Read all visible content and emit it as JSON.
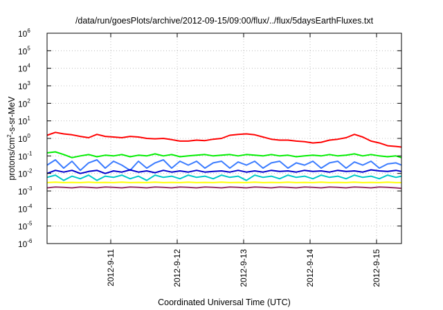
{
  "chart_data": {
    "type": "line",
    "title": "/data/run/goesPlots/archive/2012-09-15/09:00/flux/../flux/5daysEarthFluxes.txt",
    "xlabel": "Coordinated Universal Time (UTC)",
    "ylabel": {
      "prefix": "protons/cm",
      "sup": "2",
      "suffix": "-s-sr-MeV"
    },
    "y_scale": "log",
    "ylim": [
      1e-06,
      1000000.0
    ],
    "y_ticks": [
      {
        "value": 1e-06,
        "base": "10",
        "exp": "-6"
      },
      {
        "value": 1e-05,
        "base": "10",
        "exp": "-5"
      },
      {
        "value": 0.0001,
        "base": "10",
        "exp": "-4"
      },
      {
        "value": 0.001,
        "base": "10",
        "exp": "-3"
      },
      {
        "value": 0.01,
        "base": "10",
        "exp": "-2"
      },
      {
        "value": 0.1,
        "base": "10",
        "exp": "-1"
      },
      {
        "value": 1.0,
        "base": "10",
        "exp": "0"
      },
      {
        "value": 10.0,
        "base": "10",
        "exp": "1"
      },
      {
        "value": 100.0,
        "base": "10",
        "exp": "2"
      },
      {
        "value": 1000.0,
        "base": "10",
        "exp": "3"
      },
      {
        "value": 10000.0,
        "base": "10",
        "exp": "4"
      },
      {
        "value": 100000.0,
        "base": "10",
        "exp": "5"
      },
      {
        "value": 1000000.0,
        "base": "10",
        "exp": "6"
      }
    ],
    "xlim": [
      "2012-09-10 01:00",
      "2012-09-15 09:00"
    ],
    "x_ticks": [
      {
        "value": "2012-09-11 00:00",
        "label": "2012-9-11"
      },
      {
        "value": "2012-09-12 00:00",
        "label": "2012-9-12"
      },
      {
        "value": "2012-09-13 00:00",
        "label": "2012-9-13"
      },
      {
        "value": "2012-09-14 00:00",
        "label": "2012-9-14"
      },
      {
        "value": "2012-09-15 00:00",
        "label": "2012-9-15"
      }
    ],
    "grid": true,
    "x": [
      "2012-09-10 01:00",
      "2012-09-10 04:00",
      "2012-09-10 07:00",
      "2012-09-10 10:00",
      "2012-09-10 13:00",
      "2012-09-10 16:00",
      "2012-09-10 19:00",
      "2012-09-10 22:00",
      "2012-09-11 01:00",
      "2012-09-11 04:00",
      "2012-09-11 07:00",
      "2012-09-11 10:00",
      "2012-09-11 13:00",
      "2012-09-11 16:00",
      "2012-09-11 19:00",
      "2012-09-11 22:00",
      "2012-09-12 01:00",
      "2012-09-12 04:00",
      "2012-09-12 07:00",
      "2012-09-12 10:00",
      "2012-09-12 13:00",
      "2012-09-12 16:00",
      "2012-09-12 19:00",
      "2012-09-12 22:00",
      "2012-09-13 01:00",
      "2012-09-13 04:00",
      "2012-09-13 07:00",
      "2012-09-13 10:00",
      "2012-09-13 13:00",
      "2012-09-13 16:00",
      "2012-09-13 19:00",
      "2012-09-13 22:00",
      "2012-09-14 01:00",
      "2012-09-14 04:00",
      "2012-09-14 07:00",
      "2012-09-14 10:00",
      "2012-09-14 13:00",
      "2012-09-14 16:00",
      "2012-09-14 19:00",
      "2012-09-14 22:00",
      "2012-09-15 01:00",
      "2012-09-15 04:00",
      "2012-09-15 07:00",
      "2012-09-15 09:00"
    ],
    "series": [
      {
        "color": "#ff0000",
        "values": [
          1.5,
          2.2,
          1.8,
          1.6,
          1.3,
          1.1,
          1.7,
          1.3,
          1.2,
          1.1,
          1.3,
          1.2,
          1.0,
          0.95,
          1.0,
          0.85,
          0.7,
          0.7,
          0.8,
          0.75,
          0.9,
          1.0,
          1.5,
          1.7,
          1.8,
          1.6,
          1.2,
          0.9,
          0.8,
          0.8,
          0.7,
          0.65,
          0.55,
          0.6,
          0.8,
          0.9,
          1.1,
          1.7,
          1.2,
          0.7,
          0.55,
          0.38,
          0.35,
          0.32
        ]
      },
      {
        "color": "#00ee00",
        "values": [
          0.15,
          0.17,
          0.12,
          0.08,
          0.1,
          0.12,
          0.09,
          0.11,
          0.1,
          0.12,
          0.09,
          0.11,
          0.1,
          0.13,
          0.1,
          0.12,
          0.09,
          0.1,
          0.11,
          0.12,
          0.1,
          0.11,
          0.12,
          0.1,
          0.12,
          0.11,
          0.1,
          0.12,
          0.1,
          0.11,
          0.09,
          0.1,
          0.11,
          0.1,
          0.12,
          0.1,
          0.11,
          0.13,
          0.1,
          0.12,
          0.1,
          0.09,
          0.1,
          0.08
        ]
      },
      {
        "color": "#3a7bff",
        "values": [
          0.03,
          0.06,
          0.02,
          0.05,
          0.015,
          0.04,
          0.06,
          0.02,
          0.05,
          0.03,
          0.015,
          0.05,
          0.02,
          0.04,
          0.06,
          0.02,
          0.05,
          0.03,
          0.05,
          0.02,
          0.04,
          0.05,
          0.02,
          0.045,
          0.03,
          0.05,
          0.02,
          0.04,
          0.05,
          0.02,
          0.04,
          0.03,
          0.05,
          0.02,
          0.04,
          0.05,
          0.02,
          0.045,
          0.03,
          0.05,
          0.02,
          0.035,
          0.04,
          0.03
        ]
      },
      {
        "color": "#0000cc",
        "values": [
          0.01,
          0.015,
          0.012,
          0.015,
          0.01,
          0.013,
          0.015,
          0.01,
          0.014,
          0.012,
          0.016,
          0.012,
          0.014,
          0.011,
          0.015,
          0.012,
          0.014,
          0.012,
          0.015,
          0.012,
          0.013,
          0.014,
          0.012,
          0.015,
          0.012,
          0.014,
          0.012,
          0.015,
          0.013,
          0.014,
          0.012,
          0.015,
          0.013,
          0.014,
          0.012,
          0.015,
          0.013,
          0.014,
          0.012,
          0.016,
          0.014,
          0.013,
          0.015,
          0.013
        ]
      },
      {
        "color": "#00c8c8",
        "values": [
          0.006,
          0.008,
          0.004,
          0.007,
          0.005,
          0.008,
          0.004,
          0.007,
          0.006,
          0.008,
          0.005,
          0.007,
          0.004,
          0.008,
          0.006,
          0.007,
          0.005,
          0.008,
          0.006,
          0.007,
          0.005,
          0.008,
          0.006,
          0.007,
          0.004,
          0.008,
          0.006,
          0.007,
          0.005,
          0.008,
          0.006,
          0.007,
          0.005,
          0.008,
          0.006,
          0.007,
          0.005,
          0.008,
          0.006,
          0.007,
          0.005,
          0.008,
          0.006,
          0.007
        ]
      },
      {
        "color": "#ffff00",
        "values": [
          0.003,
          0.0032,
          0.003,
          0.0031,
          0.003,
          0.0032,
          0.003,
          0.0031,
          0.003,
          0.0032,
          0.003,
          0.0031,
          0.003,
          0.0032,
          0.003,
          0.0031,
          0.003,
          0.0032,
          0.003,
          0.0031,
          0.003,
          0.0032,
          0.003,
          0.0031,
          0.003,
          0.0032,
          0.003,
          0.0031,
          0.003,
          0.0032,
          0.003,
          0.0031,
          0.003,
          0.0032,
          0.003,
          0.0031,
          0.003,
          0.0032,
          0.003,
          0.0031,
          0.003,
          0.0032,
          0.003,
          0.003
        ]
      },
      {
        "color": "#993366",
        "values": [
          0.0015,
          0.0017,
          0.0016,
          0.0015,
          0.0017,
          0.0016,
          0.0015,
          0.0017,
          0.0016,
          0.0015,
          0.0017,
          0.0016,
          0.0015,
          0.0017,
          0.0016,
          0.0015,
          0.0017,
          0.0016,
          0.0015,
          0.0017,
          0.0016,
          0.0015,
          0.0017,
          0.0016,
          0.0015,
          0.0017,
          0.0016,
          0.0015,
          0.0017,
          0.0016,
          0.0015,
          0.0017,
          0.0016,
          0.0015,
          0.0017,
          0.0016,
          0.0015,
          0.0017,
          0.0016,
          0.0015,
          0.0017,
          0.0016,
          0.0015,
          0.0014
        ]
      }
    ]
  }
}
